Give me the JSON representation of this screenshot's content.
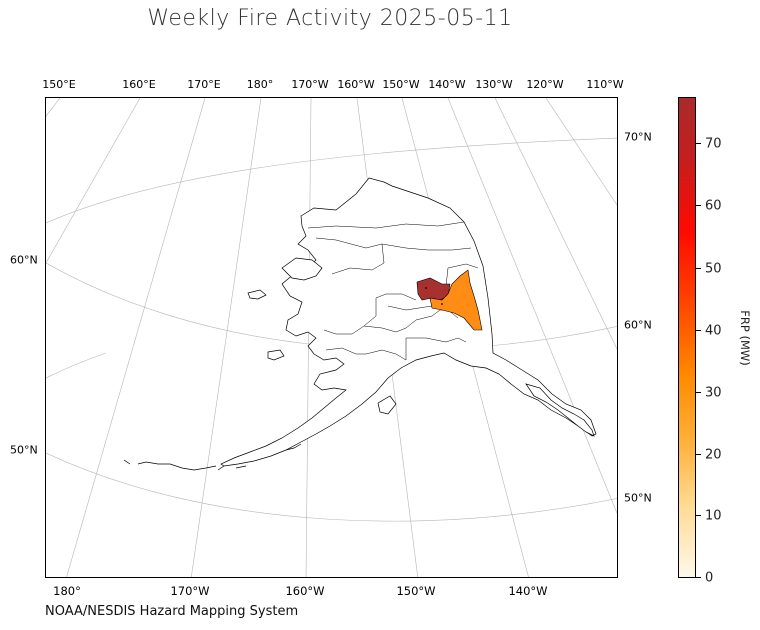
{
  "title": "Weekly Fire Activity 2025-05-11",
  "credit": "NOAA/NESDIS Hazard Mapping System",
  "top_ticks": [
    "150°E",
    "160°E",
    "170°E",
    "180°",
    "170°W",
    "160°W",
    "150°W",
    "140°W",
    "130°W",
    "120°W",
    "110°W"
  ],
  "bottom_ticks": [
    "180°",
    "170°W",
    "160°W",
    "150°W",
    "140°W"
  ],
  "left_ticks": [
    "60°N",
    "50°N"
  ],
  "right_ticks": [
    "70°N",
    "60°N",
    "50°N"
  ],
  "colorbar": {
    "label": "FRP (MW)",
    "ticks": [
      "0",
      "10",
      "20",
      "30",
      "40",
      "50",
      "60",
      "70"
    ],
    "range": [
      0,
      77
    ],
    "colors": [
      "#fff8ea",
      "#ffdd99",
      "#ffb13b",
      "#ff8a00",
      "#ff4a00",
      "#ff0a00",
      "#c21f1f",
      "#aa2a2a"
    ]
  },
  "fire_regions": [
    {
      "frp_color": "#a8302e"
    },
    {
      "frp_color": "#ff8c14"
    }
  ]
}
